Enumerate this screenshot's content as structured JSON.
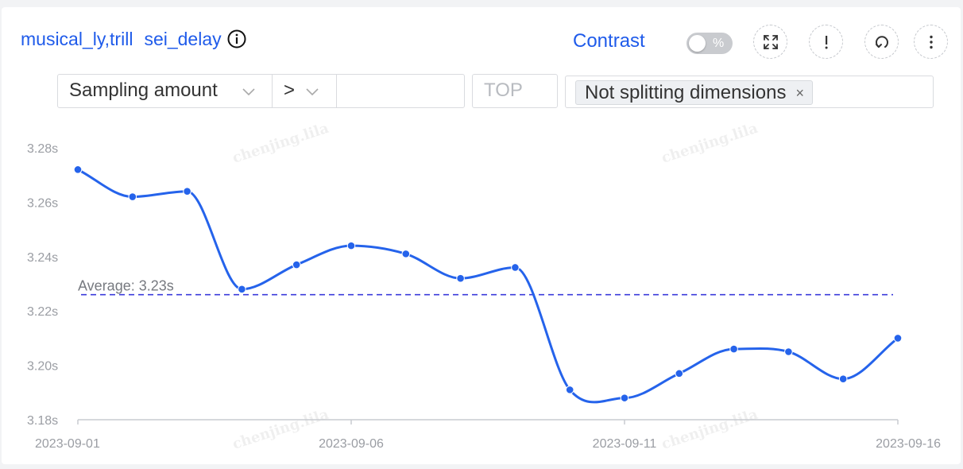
{
  "header": {
    "title_part1": "musical_ly,trill",
    "title_part2": "sei_delay",
    "info_icon": "info-circle-icon",
    "contrast_label": "Contrast",
    "toggle_text": "%",
    "toggle_on": false,
    "actions": [
      "fullscreen-icon",
      "exclamation-icon",
      "refresh-icon",
      "more-vertical-icon"
    ]
  },
  "filters": {
    "metric_select": "Sampling amount",
    "operator_select": ">",
    "value_input": "",
    "top_placeholder": "TOP",
    "dimension_tag": "Not splitting dimensions"
  },
  "watermark_text": "chenjing.lila",
  "colors": {
    "accent": "#1f5bea",
    "line": "#2563eb",
    "average": "#3b3bdb"
  },
  "chart_data": {
    "type": "line",
    "title": "",
    "xlabel": "",
    "ylabel": "",
    "x": [
      "2023-09-01",
      "2023-09-02",
      "2023-09-03",
      "2023-09-04",
      "2023-09-05",
      "2023-09-06",
      "2023-09-07",
      "2023-09-08",
      "2023-09-09",
      "2023-09-10",
      "2023-09-11",
      "2023-09-12",
      "2023-09-13",
      "2023-09-14",
      "2023-09-15",
      "2023-09-16"
    ],
    "values": [
      3.272,
      3.262,
      3.264,
      3.228,
      3.237,
      3.244,
      3.241,
      3.232,
      3.236,
      3.191,
      3.188,
      3.197,
      3.206,
      3.205,
      3.195,
      3.21
    ],
    "x_tick_labels": [
      "2023-09-01",
      "2023-09-06",
      "2023-09-11",
      "2023-09-16"
    ],
    "x_tick_indices": [
      0,
      5,
      10,
      15
    ],
    "y_ticks": [
      3.18,
      3.2,
      3.22,
      3.24,
      3.26,
      3.28
    ],
    "y_tick_labels": [
      "3.18s",
      "3.20s",
      "3.22s",
      "3.24s",
      "3.26s",
      "3.28s"
    ],
    "ylim": [
      3.18,
      3.28
    ],
    "average": 3.226,
    "average_label": "Average: 3.23s",
    "grid": false,
    "smooth": true
  }
}
